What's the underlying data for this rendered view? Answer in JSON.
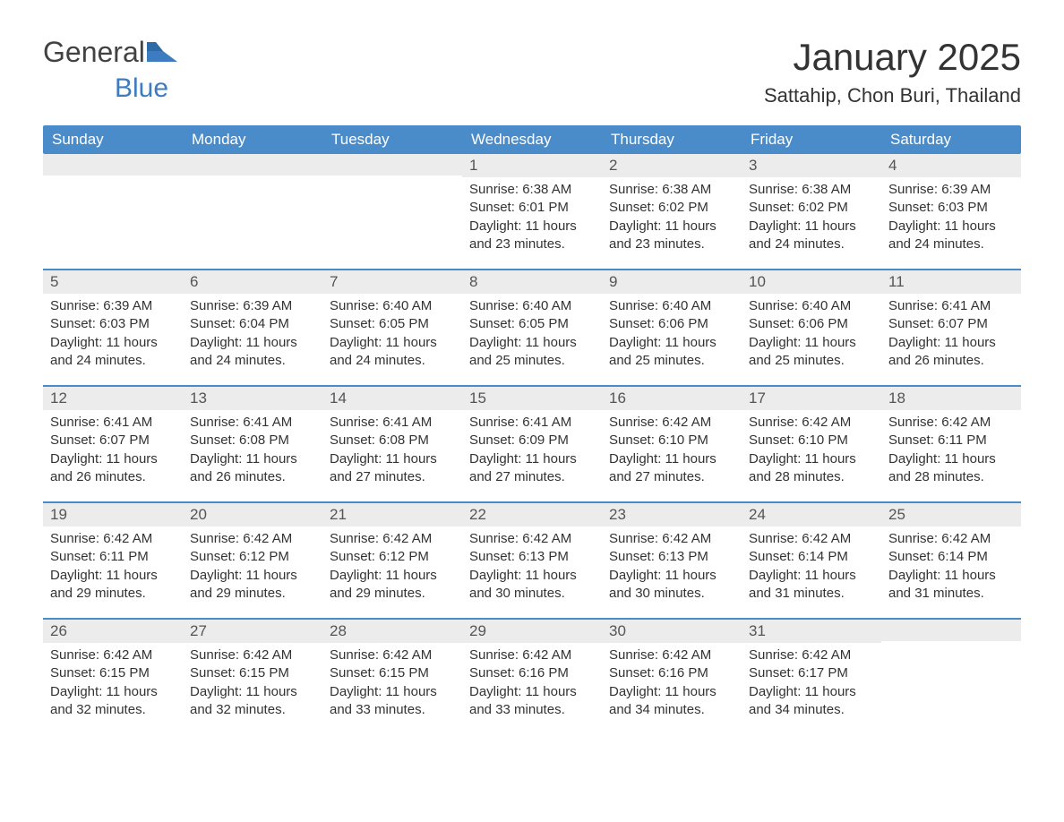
{
  "logo": {
    "text1": "General",
    "text2": "Blue"
  },
  "title": "January 2025",
  "location": "Sattahip, Chon Buri, Thailand",
  "colors": {
    "header_bg": "#4a8bc9",
    "header_text": "#ffffff",
    "daynum_bg": "#ececec",
    "body_text": "#333333",
    "logo_gray": "#424242",
    "logo_blue": "#3d7cc0",
    "week_border": "#4a8bc9",
    "page_bg": "#ffffff"
  },
  "typography": {
    "title_fontsize": 42,
    "location_fontsize": 22,
    "dow_fontsize": 17,
    "daynum_fontsize": 17,
    "body_fontsize": 15
  },
  "days_of_week": [
    "Sunday",
    "Monday",
    "Tuesday",
    "Wednesday",
    "Thursday",
    "Friday",
    "Saturday"
  ],
  "weeks": [
    [
      {
        "n": "",
        "sunrise": "",
        "sunset": "",
        "daylight": ""
      },
      {
        "n": "",
        "sunrise": "",
        "sunset": "",
        "daylight": ""
      },
      {
        "n": "",
        "sunrise": "",
        "sunset": "",
        "daylight": ""
      },
      {
        "n": "1",
        "sunrise": "Sunrise: 6:38 AM",
        "sunset": "Sunset: 6:01 PM",
        "daylight": "Daylight: 11 hours and 23 minutes."
      },
      {
        "n": "2",
        "sunrise": "Sunrise: 6:38 AM",
        "sunset": "Sunset: 6:02 PM",
        "daylight": "Daylight: 11 hours and 23 minutes."
      },
      {
        "n": "3",
        "sunrise": "Sunrise: 6:38 AM",
        "sunset": "Sunset: 6:02 PM",
        "daylight": "Daylight: 11 hours and 24 minutes."
      },
      {
        "n": "4",
        "sunrise": "Sunrise: 6:39 AM",
        "sunset": "Sunset: 6:03 PM",
        "daylight": "Daylight: 11 hours and 24 minutes."
      }
    ],
    [
      {
        "n": "5",
        "sunrise": "Sunrise: 6:39 AM",
        "sunset": "Sunset: 6:03 PM",
        "daylight": "Daylight: 11 hours and 24 minutes."
      },
      {
        "n": "6",
        "sunrise": "Sunrise: 6:39 AM",
        "sunset": "Sunset: 6:04 PM",
        "daylight": "Daylight: 11 hours and 24 minutes."
      },
      {
        "n": "7",
        "sunrise": "Sunrise: 6:40 AM",
        "sunset": "Sunset: 6:05 PM",
        "daylight": "Daylight: 11 hours and 24 minutes."
      },
      {
        "n": "8",
        "sunrise": "Sunrise: 6:40 AM",
        "sunset": "Sunset: 6:05 PM",
        "daylight": "Daylight: 11 hours and 25 minutes."
      },
      {
        "n": "9",
        "sunrise": "Sunrise: 6:40 AM",
        "sunset": "Sunset: 6:06 PM",
        "daylight": "Daylight: 11 hours and 25 minutes."
      },
      {
        "n": "10",
        "sunrise": "Sunrise: 6:40 AM",
        "sunset": "Sunset: 6:06 PM",
        "daylight": "Daylight: 11 hours and 25 minutes."
      },
      {
        "n": "11",
        "sunrise": "Sunrise: 6:41 AM",
        "sunset": "Sunset: 6:07 PM",
        "daylight": "Daylight: 11 hours and 26 minutes."
      }
    ],
    [
      {
        "n": "12",
        "sunrise": "Sunrise: 6:41 AM",
        "sunset": "Sunset: 6:07 PM",
        "daylight": "Daylight: 11 hours and 26 minutes."
      },
      {
        "n": "13",
        "sunrise": "Sunrise: 6:41 AM",
        "sunset": "Sunset: 6:08 PM",
        "daylight": "Daylight: 11 hours and 26 minutes."
      },
      {
        "n": "14",
        "sunrise": "Sunrise: 6:41 AM",
        "sunset": "Sunset: 6:08 PM",
        "daylight": "Daylight: 11 hours and 27 minutes."
      },
      {
        "n": "15",
        "sunrise": "Sunrise: 6:41 AM",
        "sunset": "Sunset: 6:09 PM",
        "daylight": "Daylight: 11 hours and 27 minutes."
      },
      {
        "n": "16",
        "sunrise": "Sunrise: 6:42 AM",
        "sunset": "Sunset: 6:10 PM",
        "daylight": "Daylight: 11 hours and 27 minutes."
      },
      {
        "n": "17",
        "sunrise": "Sunrise: 6:42 AM",
        "sunset": "Sunset: 6:10 PM",
        "daylight": "Daylight: 11 hours and 28 minutes."
      },
      {
        "n": "18",
        "sunrise": "Sunrise: 6:42 AM",
        "sunset": "Sunset: 6:11 PM",
        "daylight": "Daylight: 11 hours and 28 minutes."
      }
    ],
    [
      {
        "n": "19",
        "sunrise": "Sunrise: 6:42 AM",
        "sunset": "Sunset: 6:11 PM",
        "daylight": "Daylight: 11 hours and 29 minutes."
      },
      {
        "n": "20",
        "sunrise": "Sunrise: 6:42 AM",
        "sunset": "Sunset: 6:12 PM",
        "daylight": "Daylight: 11 hours and 29 minutes."
      },
      {
        "n": "21",
        "sunrise": "Sunrise: 6:42 AM",
        "sunset": "Sunset: 6:12 PM",
        "daylight": "Daylight: 11 hours and 29 minutes."
      },
      {
        "n": "22",
        "sunrise": "Sunrise: 6:42 AM",
        "sunset": "Sunset: 6:13 PM",
        "daylight": "Daylight: 11 hours and 30 minutes."
      },
      {
        "n": "23",
        "sunrise": "Sunrise: 6:42 AM",
        "sunset": "Sunset: 6:13 PM",
        "daylight": "Daylight: 11 hours and 30 minutes."
      },
      {
        "n": "24",
        "sunrise": "Sunrise: 6:42 AM",
        "sunset": "Sunset: 6:14 PM",
        "daylight": "Daylight: 11 hours and 31 minutes."
      },
      {
        "n": "25",
        "sunrise": "Sunrise: 6:42 AM",
        "sunset": "Sunset: 6:14 PM",
        "daylight": "Daylight: 11 hours and 31 minutes."
      }
    ],
    [
      {
        "n": "26",
        "sunrise": "Sunrise: 6:42 AM",
        "sunset": "Sunset: 6:15 PM",
        "daylight": "Daylight: 11 hours and 32 minutes."
      },
      {
        "n": "27",
        "sunrise": "Sunrise: 6:42 AM",
        "sunset": "Sunset: 6:15 PM",
        "daylight": "Daylight: 11 hours and 32 minutes."
      },
      {
        "n": "28",
        "sunrise": "Sunrise: 6:42 AM",
        "sunset": "Sunset: 6:15 PM",
        "daylight": "Daylight: 11 hours and 33 minutes."
      },
      {
        "n": "29",
        "sunrise": "Sunrise: 6:42 AM",
        "sunset": "Sunset: 6:16 PM",
        "daylight": "Daylight: 11 hours and 33 minutes."
      },
      {
        "n": "30",
        "sunrise": "Sunrise: 6:42 AM",
        "sunset": "Sunset: 6:16 PM",
        "daylight": "Daylight: 11 hours and 34 minutes."
      },
      {
        "n": "31",
        "sunrise": "Sunrise: 6:42 AM",
        "sunset": "Sunset: 6:17 PM",
        "daylight": "Daylight: 11 hours and 34 minutes."
      },
      {
        "n": "",
        "sunrise": "",
        "sunset": "",
        "daylight": ""
      }
    ]
  ]
}
